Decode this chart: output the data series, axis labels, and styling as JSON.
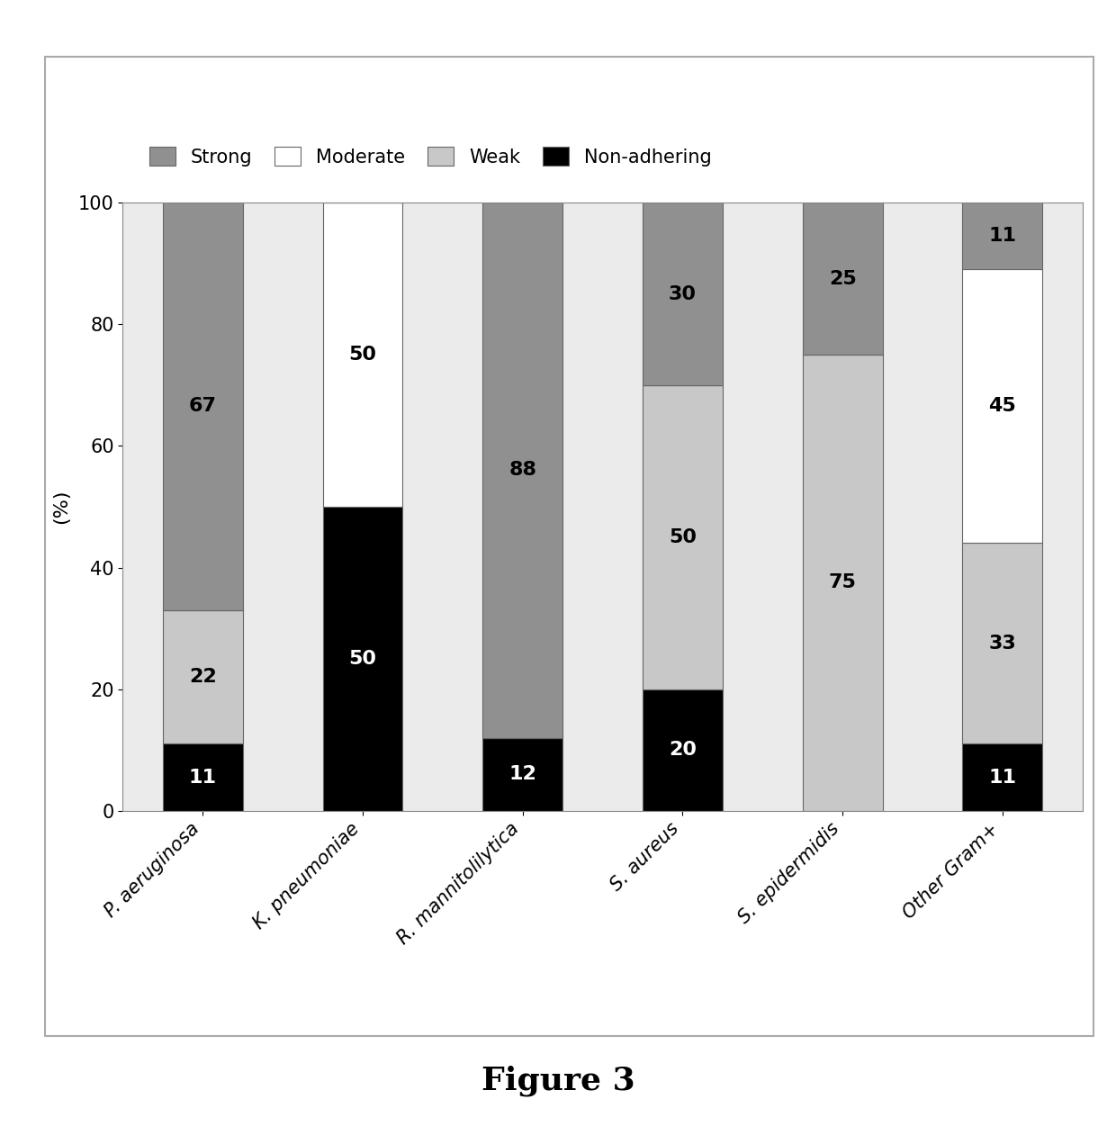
{
  "categories": [
    "P. aeruginosa",
    "K. pneumoniae",
    "R. mannitolilytica",
    "S. aureus",
    "S. epidermidis",
    "Other Gram+"
  ],
  "series": {
    "Non-adhering": [
      11,
      50,
      12,
      20,
      0,
      11
    ],
    "Weak": [
      22,
      0,
      0,
      50,
      75,
      33
    ],
    "Moderate": [
      0,
      50,
      0,
      0,
      0,
      45
    ],
    "Strong": [
      67,
      0,
      88,
      30,
      25,
      11
    ]
  },
  "colors": {
    "Strong": "#909090",
    "Moderate": "#ffffff",
    "Weak": "#c8c8c8",
    "Non-adhering": "#000000"
  },
  "legend_labels": [
    "Strong",
    "Moderate",
    "Weak",
    "Non-adhering"
  ],
  "ylabel": "(%)",
  "ylim": [
    0,
    100
  ],
  "yticks": [
    0,
    20,
    40,
    60,
    80,
    100
  ],
  "figure_caption": "Figure 3",
  "bar_edge_color": "#666666",
  "bar_width": 0.5,
  "background_color": "#ffffff",
  "plot_bg_color": "#ebebeb",
  "label_fontsize": 16,
  "tick_fontsize": 15,
  "legend_fontsize": 15,
  "caption_fontsize": 26,
  "ylabel_fontsize": 16
}
